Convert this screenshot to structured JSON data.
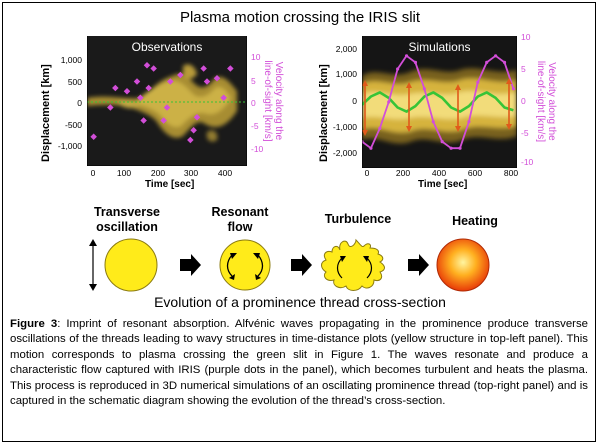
{
  "title": "Plasma motion crossing the IRIS slit",
  "colors": {
    "dark_bg": "#1a1a1a",
    "structure": "#e6c84a",
    "purple": "#d24ed8",
    "green": "#37c437",
    "arrow_orange": "#e05a1a"
  },
  "left_panel": {
    "label": "Observations",
    "ylabel": "Displacement [km]",
    "xlabel": "Time [sec]",
    "vlabel_line1": "Velocity along the",
    "vlabel_line2": "line-of-sight [km/s]",
    "yticks": [
      "1,000",
      "500",
      "0",
      "-500",
      "-1,000"
    ],
    "vticks": [
      "10",
      "5",
      "0",
      "-5",
      "-10"
    ],
    "xticks": [
      "0",
      "100",
      "200",
      "300",
      "400"
    ]
  },
  "right_panel": {
    "label": "Simulations",
    "ylabel": "Displacement [km]",
    "xlabel": "Time [sec]",
    "vlabel_line1": "Velocity along the",
    "vlabel_line2": "line-of-sight [km/s]",
    "yticks": [
      "2,000",
      "1,000",
      "0",
      "-1,000",
      "-2,000"
    ],
    "vticks": [
      "10",
      "5",
      "0",
      "-5",
      "-10"
    ],
    "xticks": [
      "0",
      "200",
      "400",
      "600",
      "800"
    ]
  },
  "chart_data": [
    {
      "type": "scatter",
      "title": "Observations",
      "xlabel": "Time [sec]",
      "ylabel": "Displacement [km]",
      "y2label": "Velocity along the line-of-sight [km/s]",
      "xlim": [
        -10,
        470
      ],
      "ylim": [
        -1300,
        1350
      ],
      "y2lim": [
        -10,
        10
      ],
      "series": [
        {
          "points": [
            [
              10,
              -5.5
            ],
            [
              60,
              -1
            ],
            [
              75,
              2
            ],
            [
              110,
              1.5
            ],
            [
              140,
              3
            ],
            [
              150,
              0.5
            ],
            [
              160,
              -3
            ],
            [
              170,
              5.5
            ],
            [
              175,
              2
            ],
            [
              190,
              5
            ],
            [
              220,
              -3
            ],
            [
              230,
              -1
            ],
            [
              240,
              3
            ],
            [
              270,
              4
            ],
            [
              300,
              -6
            ],
            [
              310,
              -4.5
            ],
            [
              320,
              -2.5
            ],
            [
              340,
              5
            ],
            [
              350,
              3
            ],
            [
              380,
              3.5
            ],
            [
              400,
              0.5
            ],
            [
              420,
              5
            ]
          ]
        }
      ]
    },
    {
      "type": "line",
      "title": "Simulations",
      "xlabel": "Time [sec]",
      "ylabel": "Displacement [km]",
      "y2label": "Velocity along the line-of-sight [km/s]",
      "xlim": [
        0,
        870
      ],
      "ylim": [
        -2400,
        2400
      ],
      "y2lim": [
        -10,
        10
      ],
      "series": [
        {
          "x": [
            0,
            50,
            100,
            150,
            200,
            250,
            300,
            350,
            400,
            450,
            500,
            550,
            600,
            650,
            700,
            750,
            800,
            850
          ],
          "values": [
            -100,
            200,
            350,
            150,
            -200,
            -350,
            -150,
            200,
            350,
            150,
            -200,
            -350,
            -150,
            200,
            350,
            150,
            -200,
            -300
          ]
        },
        {
          "x": [
            0,
            50,
            100,
            150,
            200,
            250,
            300,
            350,
            400,
            450,
            500,
            550,
            600,
            650,
            700,
            750,
            800,
            850
          ],
          "values": [
            -6,
            -7,
            -4,
            0,
            5,
            7,
            6,
            2,
            -3,
            -6,
            -7,
            -7,
            -3,
            3,
            6,
            7,
            6,
            2
          ]
        }
      ]
    }
  ],
  "stages": [
    {
      "label_line1": "Transverse",
      "label_line2": "oscillation"
    },
    {
      "label_line1": "Resonant",
      "label_line2": "flow"
    },
    {
      "label_line1": "Turbulence",
      "label_line2": ""
    },
    {
      "label_line1": "Heating",
      "label_line2": ""
    }
  ],
  "stage_caption": "Evolution of a prominence thread cross-section",
  "caption": {
    "lead": "Figure 3",
    "text": ": Imprint of resonant absorption. Alfvénic waves propagating in the prominence produce transverse oscillations of the threads leading to wavy structures in time-distance plots (yellow structure in top-left panel). This motion corresponds to plasma crossing the green slit in Figure 1. The waves resonate and produce a characteristic flow captured with IRIS (purple dots in the panel), which becomes turbulent and heats the plasma. This process is reproduced in 3D numerical simulations of an oscillating prominence thread (top-right panel) and is captured in the schematic diagram showing the evolution of the thread’s cross-section."
  }
}
